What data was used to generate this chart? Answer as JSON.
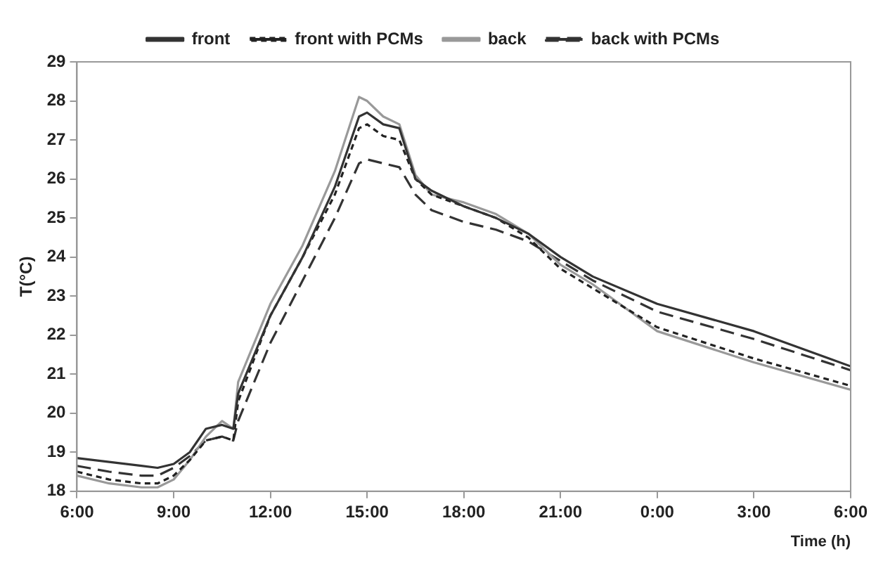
{
  "chart_data": {
    "type": "line",
    "xlabel": "Time (h)",
    "ylabel": "T(°C)",
    "legend": "top",
    "grid": false,
    "marker": "none",
    "xlim": [
      "--01-01T06:00",
      "--01-02T06:00"
    ],
    "xticks": [
      {
        "value": "--01-01T06:00",
        "label": "6:00"
      },
      {
        "value": "--01-01T09:00",
        "label": "9:00"
      },
      {
        "value": "--01-01T12:00",
        "label": "12:00"
      },
      {
        "value": "--01-01T15:00",
        "label": "15:00"
      },
      {
        "value": "--01-01T18:00",
        "label": "18:00"
      },
      {
        "value": "--01-01T21:00",
        "label": "21:00"
      },
      {
        "value": "--01-02T00:00",
        "label": "0:00"
      },
      {
        "value": "--01-02T03:00",
        "label": "3:00"
      },
      {
        "value": "--01-02T06:00",
        "label": "6:00"
      }
    ],
    "ylim": [
      18,
      29
    ],
    "yticks": [
      18,
      19,
      20,
      21,
      22,
      23,
      24,
      25,
      26,
      27,
      28,
      29
    ],
    "x": [
      "--01-01T06:00",
      "--01-01T07:00",
      "--01-01T08:00",
      "--01-01T08:30",
      "--01-01T09:00",
      "--01-01T09:30",
      "--01-01T10:00",
      "--01-01T10:30",
      "--01-01T10:51",
      "--01-01T11:00",
      "--01-01T12:00",
      "--01-01T13:00",
      "--01-01T14:00",
      "--01-01T14:45",
      "--01-01T15:00",
      "--01-01T15:30",
      "--01-01T16:00",
      "--01-01T16:30",
      "--01-01T17:00",
      "--01-01T18:00",
      "--01-01T19:00",
      "--01-01T20:00",
      "--01-01T21:00",
      "--01-01T22:00",
      "--01-02T00:00",
      "--01-02T03:00",
      "--01-02T06:00"
    ],
    "series": [
      {
        "name": "front",
        "color": "#333333",
        "line_style": "solid",
        "values": [
          18.85,
          18.75,
          18.65,
          18.6,
          18.7,
          19.0,
          19.6,
          19.7,
          19.6,
          20.5,
          22.5,
          24.0,
          25.8,
          27.6,
          27.7,
          27.4,
          27.3,
          26.0,
          25.7,
          25.3,
          25.0,
          24.6,
          24.0,
          23.5,
          22.8,
          22.1,
          21.2
        ]
      },
      {
        "name": "front with PCMs",
        "color": "#222222",
        "line_style": "dotted",
        "values": [
          18.5,
          18.3,
          18.2,
          18.2,
          18.4,
          18.8,
          19.3,
          19.4,
          19.3,
          20.3,
          22.5,
          24.0,
          25.6,
          27.3,
          27.4,
          27.1,
          27.0,
          26.0,
          25.6,
          25.3,
          25.0,
          24.5,
          23.7,
          23.2,
          22.2,
          21.4,
          20.7
        ]
      },
      {
        "name": "back",
        "color": "#999999",
        "line_style": "solid",
        "values": [
          18.4,
          18.2,
          18.1,
          18.1,
          18.3,
          18.8,
          19.4,
          19.8,
          19.6,
          20.8,
          22.8,
          24.3,
          26.2,
          28.1,
          28.0,
          27.6,
          27.4,
          26.1,
          25.6,
          25.4,
          25.1,
          24.6,
          23.8,
          23.3,
          22.1,
          21.3,
          20.6
        ]
      },
      {
        "name": "back with PCMs",
        "color": "#333333",
        "line_style": "dashed",
        "values": [
          18.65,
          18.5,
          18.4,
          18.4,
          18.6,
          18.9,
          19.3,
          19.4,
          19.3,
          19.8,
          21.8,
          23.4,
          25.0,
          26.4,
          26.5,
          26.4,
          26.3,
          25.6,
          25.2,
          24.9,
          24.7,
          24.4,
          23.9,
          23.4,
          22.6,
          21.9,
          21.1
        ]
      }
    ]
  }
}
